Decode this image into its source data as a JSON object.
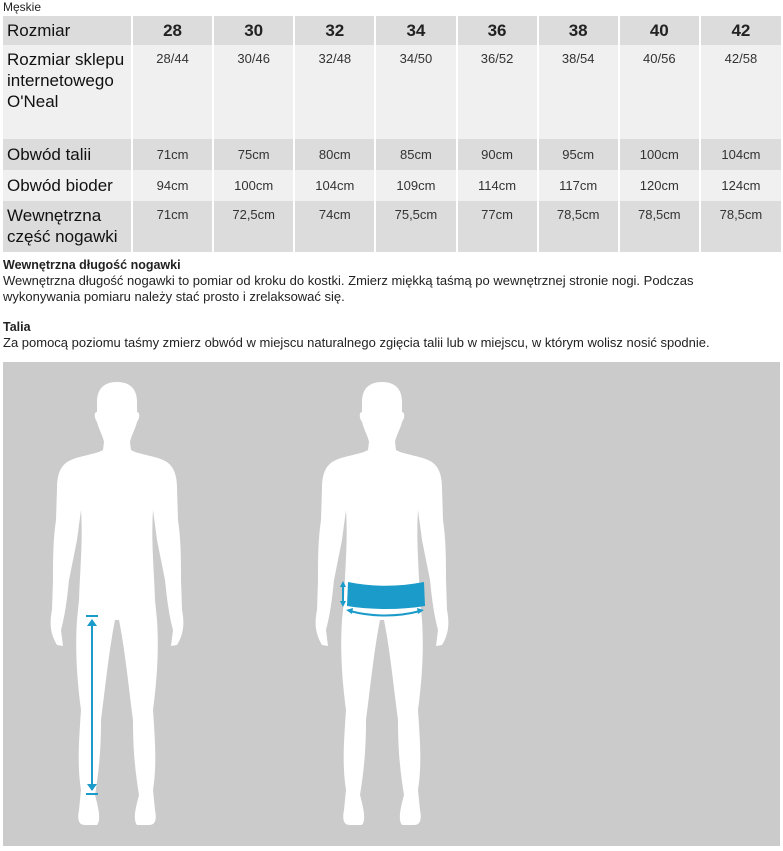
{
  "caption": "Męskie",
  "table": {
    "header": {
      "label": "Rozmiar",
      "sizes": [
        "28",
        "30",
        "32",
        "34",
        "36",
        "38",
        "40",
        "42"
      ]
    },
    "rows": [
      {
        "label": "Rozmiar sklepu internetowego O'Neal",
        "values": [
          "28/44",
          "30/46",
          "32/48",
          "34/50",
          "36/52",
          "38/54",
          "40/56",
          "42/58"
        ]
      },
      {
        "label": "Obwód talii",
        "values": [
          "71cm",
          "75cm",
          "80cm",
          "85cm",
          "90cm",
          "95cm",
          "100cm",
          "104cm"
        ]
      },
      {
        "label": "Obwód bioder",
        "values": [
          "94cm",
          "100cm",
          "104cm",
          "109cm",
          "114cm",
          "117cm",
          "120cm",
          "124cm"
        ]
      },
      {
        "label": "Wewnętrzna część nogawki",
        "values": [
          "71cm",
          "72,5cm",
          "74cm",
          "75,5cm",
          "77cm",
          "78,5cm",
          "78,5cm",
          "78,5cm"
        ]
      }
    ]
  },
  "notes": [
    {
      "title": "Wewnętrzna długość nogawki",
      "text": "Wewnętrzna długość nogawki to pomiar od kroku do kostki. Zmierz miękką taśmą po wewnętrznej stronie nogi. Podczas wykonywania pomiaru należy stać prosto i zrelaksować się."
    },
    {
      "title": "Talia",
      "text": "Za pomocą poziomu taśmy zmierz obwód w miejscu naturalnego zgięcia talii lub w miejscu, w którym wolisz nosić spodnie."
    }
  ],
  "illustration": {
    "figures": [
      "inseam-measurement",
      "waist-measurement"
    ],
    "colors": {
      "background": "#cbcbcb",
      "silhouette": "#ffffff",
      "accent": "#1a9bc9"
    }
  }
}
